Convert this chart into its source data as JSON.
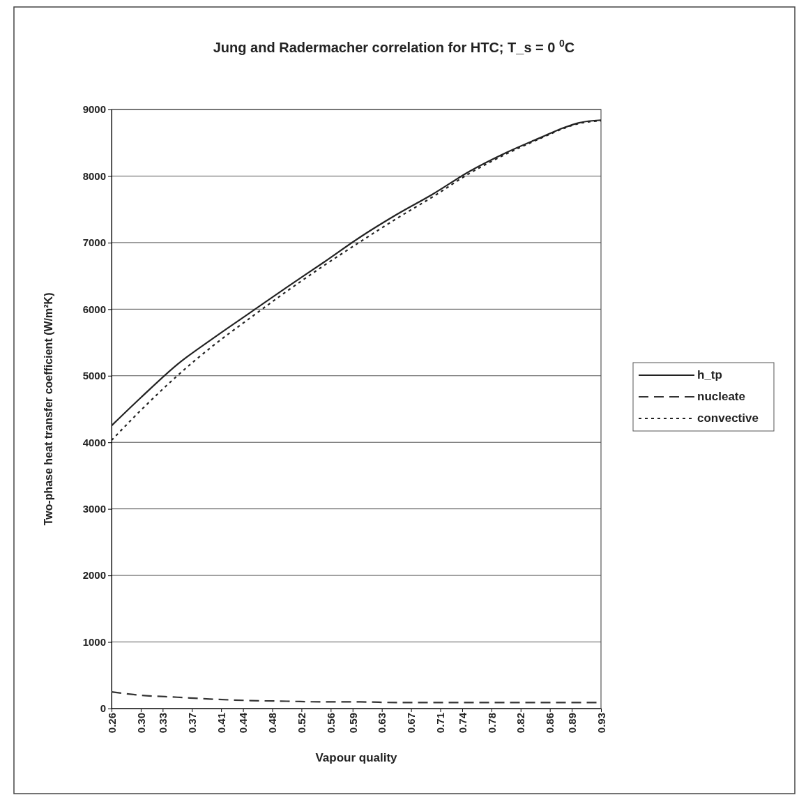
{
  "chart_data": {
    "type": "line",
    "title": "Jung and Radermacher correlation for HTC; T_s = 0 $^{0}$C",
    "xlabel": "Vapour quality",
    "ylabel": "Two-phase heat transfer coefficient (W/m²K)",
    "x": [
      0.26,
      0.3,
      0.35,
      0.4,
      0.45,
      0.5,
      0.55,
      0.6,
      0.65,
      0.7,
      0.75,
      0.8,
      0.85,
      0.88,
      0.9,
      0.93
    ],
    "series": [
      {
        "name": "h_tp",
        "color": "#222222",
        "line_style": "solid",
        "values": [
          4250,
          4670,
          5170,
          5570,
          5950,
          6330,
          6700,
          7080,
          7420,
          7730,
          8070,
          8350,
          8590,
          8730,
          8800,
          8840
        ]
      },
      {
        "name": "nucleate",
        "color": "#333333",
        "line_style": "dashed",
        "values": [
          250,
          200,
          170,
          140,
          120,
          110,
          100,
          100,
          90,
          90,
          90,
          90,
          90,
          90,
          90,
          90
        ]
      },
      {
        "name": "convective",
        "color": "#222222",
        "line_style": "dotted",
        "values": [
          4030,
          4480,
          5000,
          5460,
          5870,
          6270,
          6650,
          7010,
          7360,
          7690,
          8040,
          8330,
          8580,
          8720,
          8790,
          8830
        ]
      }
    ],
    "xlim": [
      0.26,
      0.93
    ],
    "xticks": [
      0.26,
      {
        "value": 0.3,
        "label": "0.30"
      },
      0.33,
      0.37,
      0.41,
      0.44,
      0.48,
      0.52,
      0.56,
      0.59,
      0.63,
      0.67,
      0.71,
      0.74,
      0.78,
      0.82,
      0.86,
      0.89,
      0.93
    ],
    "ylim": [
      0,
      9000
    ],
    "yticks": [
      0,
      1000,
      2000,
      3000,
      4000,
      5000,
      6000,
      7000,
      8000,
      9000
    ],
    "grid": "y",
    "legend": "right"
  }
}
